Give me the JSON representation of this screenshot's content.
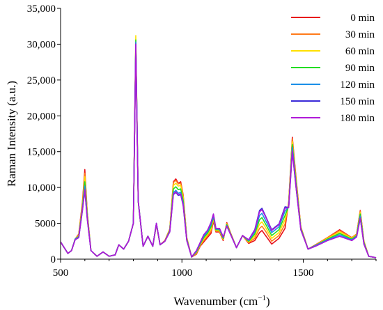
{
  "chart_data": {
    "type": "line",
    "title": "",
    "xlabel": "Wavenumber (cm",
    "xlabel_sup": "−1",
    "xlabel_close": ")",
    "ylabel": "Raman Intensity (a.u.)",
    "xlim": [
      500,
      1800
    ],
    "ylim": [
      0,
      35000
    ],
    "xticks": [
      500,
      1000,
      1500
    ],
    "xtick_labels": [
      "500",
      "1000",
      "1500"
    ],
    "yticks": [
      0,
      5000,
      10000,
      15000,
      20000,
      25000,
      30000,
      35000
    ],
    "ytick_labels": [
      "0",
      "5000",
      "10,000",
      "15,000",
      "20,000",
      "25,000",
      "30,000",
      "35,000"
    ],
    "grid": false,
    "legend_position": "top-right",
    "x": [
      500,
      530,
      545,
      560,
      575,
      590,
      600,
      610,
      625,
      650,
      675,
      700,
      725,
      740,
      760,
      780,
      800,
      810,
      820,
      840,
      860,
      880,
      895,
      910,
      930,
      950,
      965,
      975,
      985,
      995,
      1005,
      1020,
      1040,
      1060,
      1075,
      1090,
      1105,
      1120,
      1130,
      1140,
      1155,
      1170,
      1185,
      1200,
      1225,
      1250,
      1275,
      1300,
      1320,
      1330,
      1345,
      1370,
      1400,
      1425,
      1440,
      1455,
      1470,
      1490,
      1520,
      1550,
      1600,
      1650,
      1700,
      1720,
      1735,
      1750,
      1770,
      1800
    ],
    "series": [
      {
        "name": "0 min",
        "color": "#e8101a",
        "values": [
          2400,
          800,
          1200,
          2800,
          3500,
          8000,
          12500,
          6500,
          1200,
          400,
          1000,
          400,
          600,
          2000,
          1400,
          2500,
          5000,
          30000,
          8000,
          1800,
          3200,
          1800,
          4800,
          2000,
          2600,
          4200,
          10800,
          11200,
          10600,
          10800,
          9000,
          3000,
          300,
          700,
          1800,
          2400,
          3000,
          3600,
          5300,
          3800,
          3800,
          2600,
          5100,
          3700,
          1600,
          3300,
          2200,
          2600,
          3700,
          4000,
          3300,
          2100,
          2900,
          4300,
          8000,
          17000,
          11500,
          4500,
          1400,
          2000,
          3000,
          4100,
          3000,
          3500,
          6800,
          2500,
          400,
          200
        ]
      },
      {
        "name": "30 min",
        "color": "#ff7a1a",
        "values": [
          2400,
          800,
          1200,
          2800,
          3400,
          7800,
          12000,
          6400,
          1200,
          400,
          1000,
          400,
          600,
          2000,
          1400,
          2500,
          5000,
          30200,
          8000,
          1800,
          3200,
          1800,
          4900,
          2000,
          2600,
          4200,
          10700,
          11000,
          10500,
          10600,
          8900,
          3000,
          300,
          800,
          1900,
          2600,
          3200,
          3900,
          5500,
          3900,
          3900,
          2700,
          5000,
          3700,
          1600,
          3300,
          2300,
          2900,
          4300,
          4600,
          3900,
          2500,
          3300,
          4900,
          7800,
          16800,
          11300,
          4500,
          1400,
          2000,
          3000,
          4000,
          3000,
          3500,
          6700,
          2500,
          400,
          200
        ]
      },
      {
        "name": "60 min",
        "color": "#ffe000",
        "values": [
          2400,
          800,
          1200,
          2800,
          3300,
          7500,
          11500,
          6200,
          1200,
          400,
          1000,
          400,
          600,
          2000,
          1400,
          2500,
          5000,
          31200,
          8200,
          1800,
          3200,
          1800,
          4900,
          2000,
          2500,
          4100,
          10300,
          10600,
          10200,
          10300,
          8600,
          2900,
          300,
          900,
          2000,
          2800,
          3400,
          4200,
          5700,
          4000,
          4000,
          2800,
          4900,
          3600,
          1600,
          3300,
          2400,
          3200,
          4900,
          5200,
          4400,
          2900,
          3700,
          5500,
          7600,
          16400,
          11000,
          4400,
          1400,
          1900,
          2900,
          3800,
          2900,
          3400,
          6500,
          2400,
          400,
          200
        ]
      },
      {
        "name": "90 min",
        "color": "#22dd22",
        "values": [
          2400,
          800,
          1200,
          2800,
          3200,
          7200,
          10800,
          6000,
          1200,
          400,
          1000,
          400,
          600,
          2000,
          1400,
          2500,
          5000,
          30600,
          8100,
          1800,
          3200,
          1800,
          4900,
          2000,
          2500,
          4000,
          9800,
          10100,
          9700,
          9800,
          8200,
          2800,
          300,
          1000,
          2100,
          3000,
          3600,
          4500,
          5900,
          4100,
          4100,
          2900,
          4800,
          3600,
          1600,
          3300,
          2500,
          3500,
          5500,
          5800,
          4900,
          3300,
          4100,
          6100,
          7400,
          16000,
          10700,
          4300,
          1400,
          1900,
          2800,
          3600,
          2800,
          3300,
          6300,
          2300,
          400,
          200
        ]
      },
      {
        "name": "120 min",
        "color": "#1a8fe8",
        "values": [
          2400,
          800,
          1200,
          2800,
          3100,
          7000,
          10200,
          5800,
          1200,
          400,
          1000,
          400,
          600,
          2000,
          1400,
          2500,
          5000,
          30300,
          8100,
          1800,
          3200,
          1800,
          5000,
          2000,
          2500,
          3900,
          9300,
          9600,
          9200,
          9300,
          7800,
          2700,
          300,
          1100,
          2200,
          3200,
          3800,
          4800,
          6100,
          4200,
          4200,
          3000,
          4700,
          3500,
          1600,
          3300,
          2600,
          3800,
          6100,
          6400,
          5400,
          3700,
          4500,
          6700,
          7300,
          15600,
          10400,
          4200,
          1400,
          1900,
          2700,
          3400,
          2700,
          3200,
          6000,
          2200,
          400,
          200
        ]
      },
      {
        "name": "150 min",
        "color": "#3a2ad8",
        "values": [
          2400,
          800,
          1200,
          2700,
          3000,
          6800,
          9600,
          5600,
          1200,
          400,
          1000,
          400,
          600,
          2000,
          1400,
          2500,
          5000,
          30000,
          8100,
          1800,
          3200,
          1800,
          5000,
          2000,
          2500,
          3800,
          9000,
          9300,
          8900,
          9000,
          7500,
          2600,
          300,
          1200,
          2300,
          3400,
          4000,
          5100,
          6300,
          4300,
          4300,
          3100,
          4600,
          3500,
          1600,
          3300,
          2700,
          4100,
          6800,
          7100,
          6000,
          4100,
          4900,
          7300,
          7200,
          15000,
          10100,
          4100,
          1400,
          1800,
          2600,
          3200,
          2600,
          3100,
          5700,
          2100,
          400,
          200
        ]
      },
      {
        "name": "180 min",
        "color": "#b01ad8",
        "values": [
          2400,
          800,
          1200,
          2700,
          3000,
          6900,
          9700,
          5600,
          1200,
          400,
          1000,
          400,
          600,
          2000,
          1400,
          2500,
          5000,
          30000,
          8100,
          1800,
          3200,
          1800,
          5000,
          2000,
          2500,
          3800,
          9100,
          9400,
          9000,
          9100,
          7600,
          2600,
          300,
          1200,
          2300,
          3400,
          4000,
          5100,
          6300,
          4300,
          4300,
          3100,
          4600,
          3500,
          1600,
          3300,
          2700,
          4000,
          6600,
          6900,
          5900,
          4000,
          4800,
          7100,
          7200,
          15100,
          10100,
          4100,
          1400,
          1800,
          2600,
          3200,
          2600,
          3100,
          5700,
          2100,
          400,
          200
        ]
      }
    ]
  }
}
